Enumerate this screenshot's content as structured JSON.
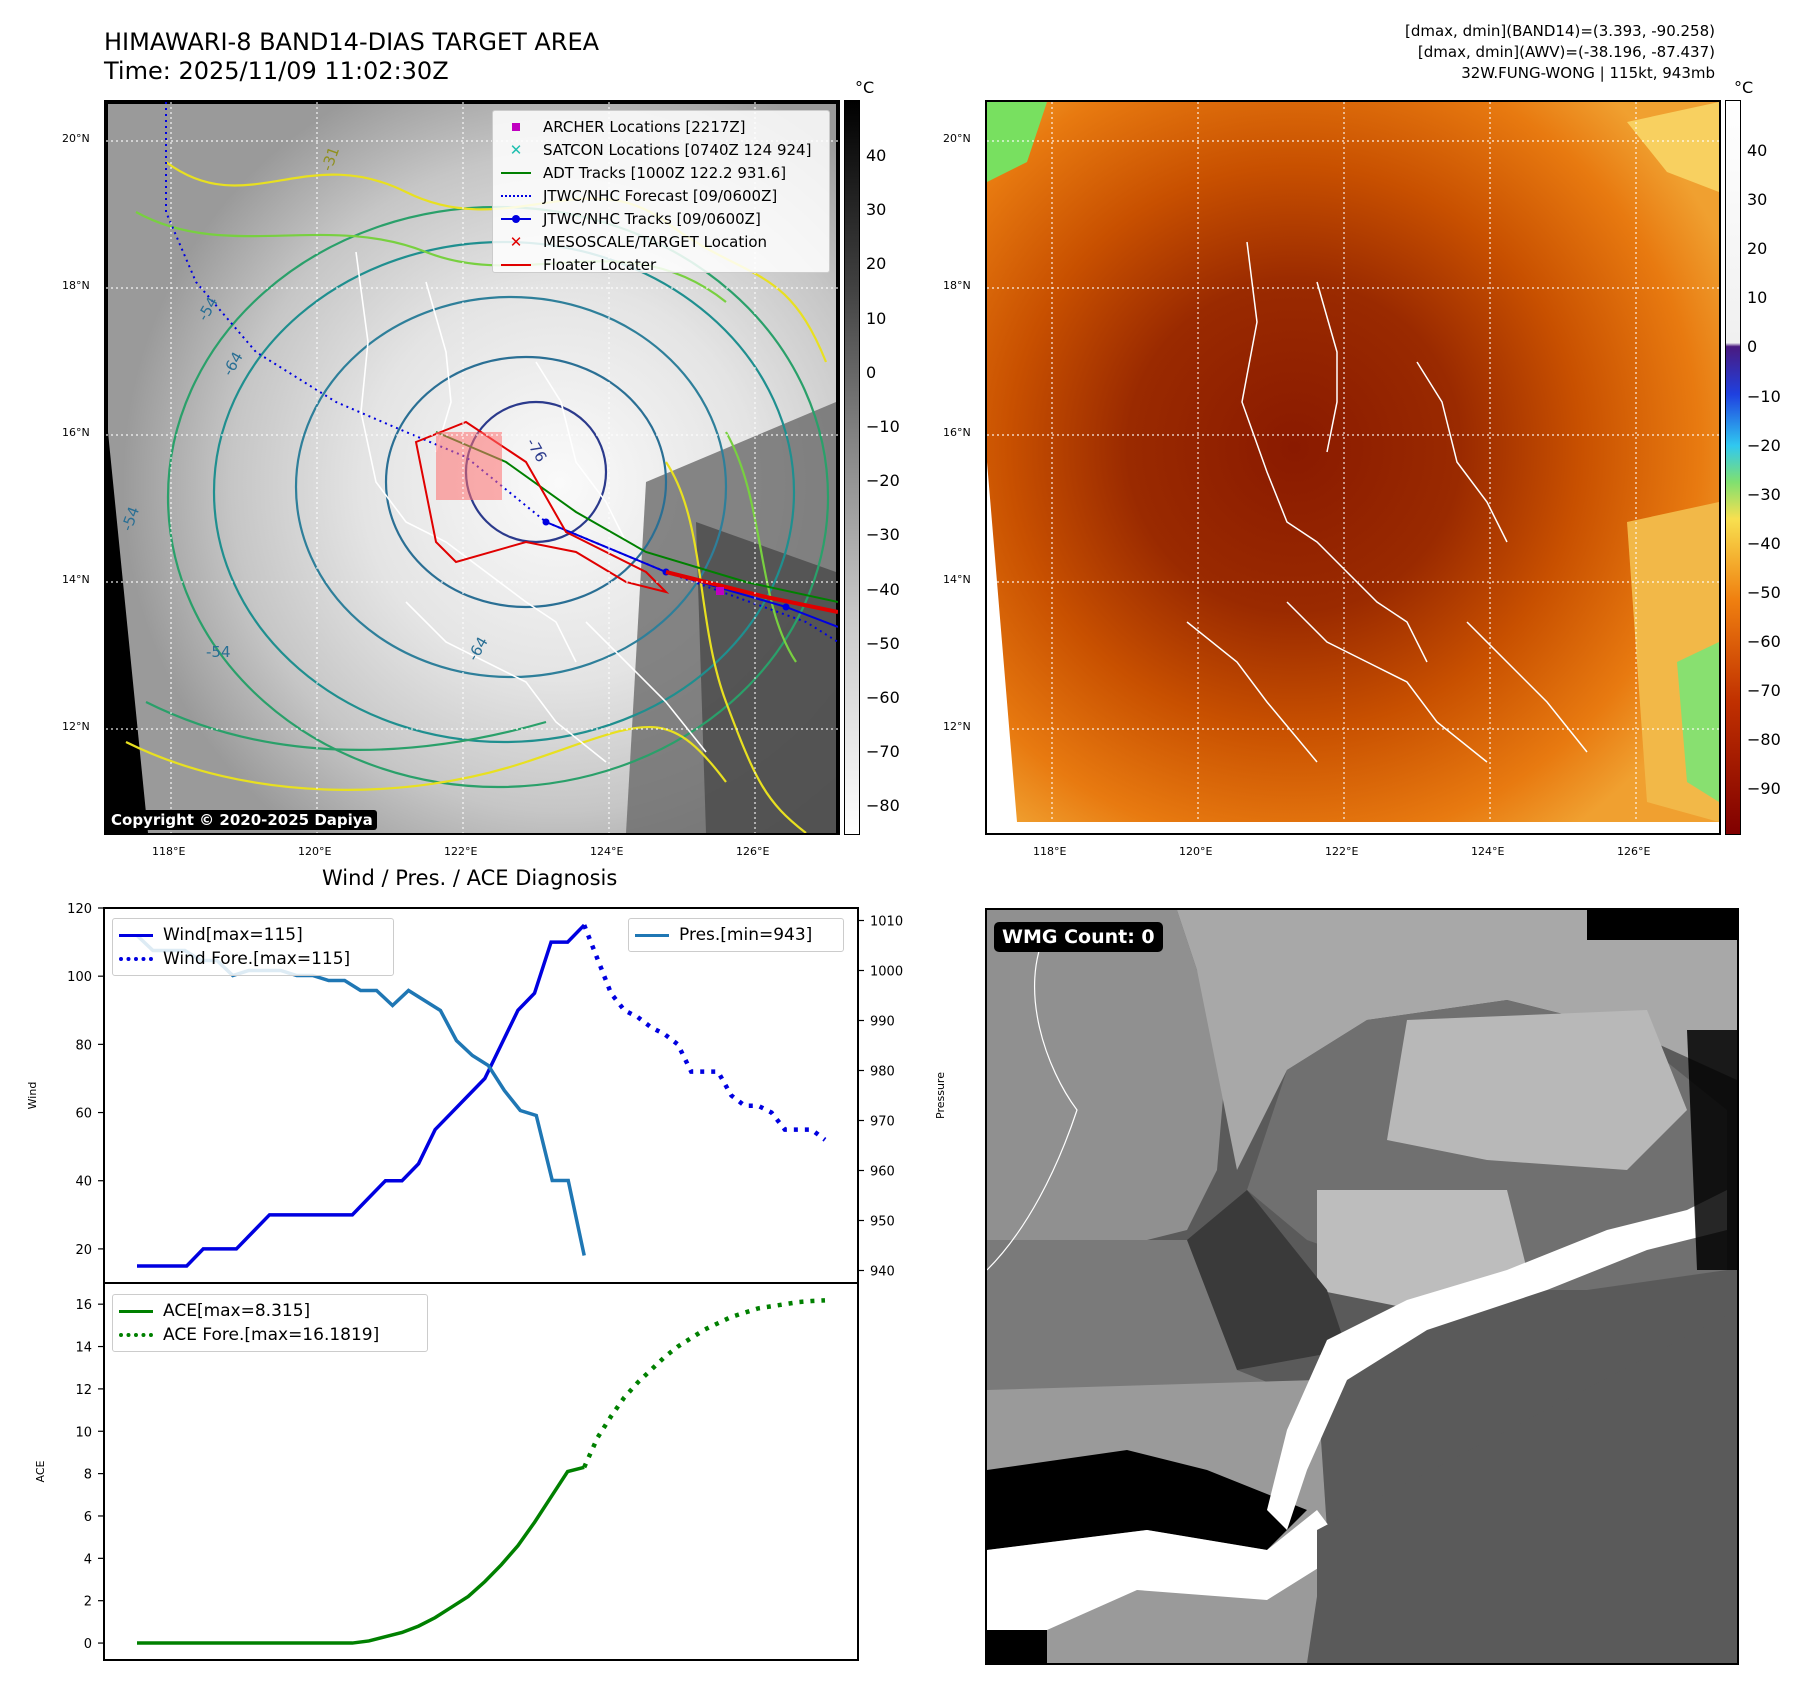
{
  "header": {
    "title_line1": "HIMAWARI-8 BAND14-DIAS TARGET AREA",
    "title_line2": "Time: 2025/11/09 11:02:30Z",
    "stats_line1": "[dmax, dmin](BAND14)=(3.393, -90.258)",
    "stats_line2": "[dmax, dmin](AWV)=(-38.196, -87.437)",
    "stats_line3": "32W.FUNG-WONG | 115kt, 943mb"
  },
  "maps": {
    "lat_labels": [
      "20°N",
      "18°N",
      "16°N",
      "14°N",
      "12°N"
    ],
    "lon_labels": [
      "118°E",
      "120°E",
      "122°E",
      "124°E",
      "126°E"
    ],
    "copyright": "Copyright © 2020-2025 Dapiya",
    "ir_colorbar": {
      "unit": "°C",
      "ticks": [
        "40",
        "30",
        "20",
        "10",
        "0",
        "−10",
        "−20",
        "−30",
        "−40",
        "−50",
        "−60",
        "−70",
        "−80"
      ]
    },
    "awv_colorbar": {
      "unit": "°C",
      "ticks": [
        "40",
        "30",
        "20",
        "10",
        "0",
        "−10",
        "−20",
        "−30",
        "−40",
        "−50",
        "−60",
        "−70",
        "−80",
        "−90"
      ]
    },
    "legend": [
      {
        "label": "ARCHER Locations [2217Z]",
        "symbol": "square",
        "color": "#c000c0"
      },
      {
        "label": "SATCON Locations [0740Z 124 924]",
        "symbol": "x",
        "color": "#20c0b0"
      },
      {
        "label": "ADT Tracks [1000Z 122.2 931.6]",
        "symbol": "line",
        "color": "#008000"
      },
      {
        "label": "JTWC/NHC Forecast [09/0600Z]",
        "symbol": "dotted",
        "color": "#0000e0"
      },
      {
        "label": "JTWC/NHC Tracks [09/0600Z]",
        "symbol": "line-dot",
        "color": "#0000e0"
      },
      {
        "label": "MESOSCALE/TARGET Location",
        "symbol": "x",
        "color": "#e00000"
      },
      {
        "label": "Floater Locater",
        "symbol": "line",
        "color": "#e00000"
      }
    ],
    "contour_labels": [
      "-54",
      "-64",
      "-76",
      "-54",
      "-64",
      "-54",
      "-31"
    ],
    "wmg_label": "WMG Count: 0"
  },
  "chart_data": [
    {
      "type": "line",
      "title": "Wind / Pres. / ACE Diagnosis",
      "ylabel": "Wind",
      "y2label": "Pressure",
      "ylim": [
        10,
        120
      ],
      "y2lim": [
        937.5,
        1012.5
      ],
      "yticks": [
        20,
        40,
        60,
        80,
        100,
        120
      ],
      "y2ticks": [
        940,
        950,
        960,
        970,
        980,
        990,
        1000,
        1010
      ],
      "legend_left": [
        "Wind[max=115]",
        "Wind Fore.[max=115]"
      ],
      "legend_right": [
        "Pres.[min=943]"
      ],
      "colors": {
        "wind": "#0000e0",
        "pressure": "#1f77b4"
      },
      "series": [
        {
          "name": "Wind[max=115]",
          "axis": "left",
          "style": "solid",
          "values": [
            15,
            15,
            15,
            15,
            20,
            20,
            20,
            25,
            30,
            30,
            30,
            30,
            30,
            30,
            35,
            40,
            40,
            45,
            55,
            60,
            65,
            70,
            80,
            90,
            95,
            110,
            110,
            115
          ]
        },
        {
          "name": "Wind Fore.[max=115]",
          "axis": "left",
          "style": "dotted",
          "values": [
            115,
            105,
            95,
            90,
            88,
            85,
            83,
            80,
            72,
            72,
            72,
            65,
            62,
            62,
            60,
            55,
            55,
            55,
            52
          ]
        },
        {
          "name": "Pres.[min=943]",
          "axis": "right",
          "style": "solid",
          "values": [
            1007,
            1004,
            1004,
            1004,
            1002,
            1002,
            999,
            1000,
            1000,
            1000,
            999,
            999,
            998,
            998,
            996,
            996,
            993,
            996,
            994,
            992,
            986,
            983,
            981,
            976,
            972,
            971,
            958,
            958,
            943
          ]
        }
      ]
    },
    {
      "type": "line",
      "ylabel": "ACE",
      "ylim": [
        -0.8,
        17.0
      ],
      "yticks": [
        0,
        2,
        4,
        6,
        8,
        10,
        12,
        14,
        16
      ],
      "legend": [
        "ACE[max=8.315]",
        "ACE Fore.[max=16.1819]"
      ],
      "color": "#008000",
      "series": [
        {
          "name": "ACE[max=8.315]",
          "style": "solid",
          "values": [
            0,
            0,
            0,
            0,
            0,
            0,
            0,
            0,
            0,
            0,
            0,
            0,
            0,
            0,
            0.1,
            0.3,
            0.5,
            0.8,
            1.2,
            1.7,
            2.2,
            2.9,
            3.7,
            4.6,
            5.7,
            6.9,
            8.1,
            8.3
          ]
        },
        {
          "name": "ACE Fore.[max=16.1819]",
          "style": "dotted",
          "values": [
            8.3,
            9.7,
            10.7,
            11.6,
            12.3,
            12.9,
            13.5,
            14.0,
            14.4,
            14.8,
            15.1,
            15.4,
            15.6,
            15.8,
            15.9,
            16.0,
            16.1,
            16.15,
            16.18
          ]
        }
      ]
    }
  ]
}
